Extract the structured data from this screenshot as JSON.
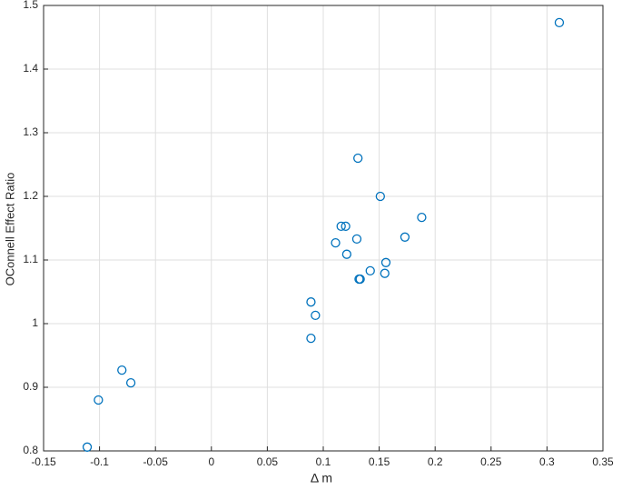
{
  "chart_data": {
    "type": "scatter",
    "xlabel": "Δ m",
    "ylabel": "OConnell Effect Ratio",
    "x": [
      -0.111,
      -0.101,
      -0.08,
      -0.072,
      0.089,
      0.093,
      0.089,
      0.111,
      0.116,
      0.12,
      0.121,
      0.13,
      0.131,
      0.132,
      0.133,
      0.142,
      0.151,
      0.155,
      0.156,
      0.173,
      0.188,
      0.311
    ],
    "values": [
      0.806,
      0.88,
      0.927,
      0.907,
      1.034,
      1.013,
      0.977,
      1.127,
      1.153,
      1.153,
      1.109,
      1.133,
      1.26,
      1.07,
      1.07,
      1.083,
      1.2,
      1.079,
      1.096,
      1.136,
      1.167,
      1.473
    ],
    "color": "#0072bd",
    "xlim": [
      -0.15,
      0.35
    ],
    "xticks": [
      -0.15,
      -0.1,
      -0.05,
      0,
      0.05,
      0.1,
      0.15,
      0.2,
      0.25,
      0.3,
      0.35
    ],
    "ylim": [
      0.8,
      1.5
    ],
    "yticks": [
      0.8,
      0.9,
      1,
      1.1,
      1.2,
      1.3,
      1.4,
      1.5
    ],
    "grid": true
  }
}
